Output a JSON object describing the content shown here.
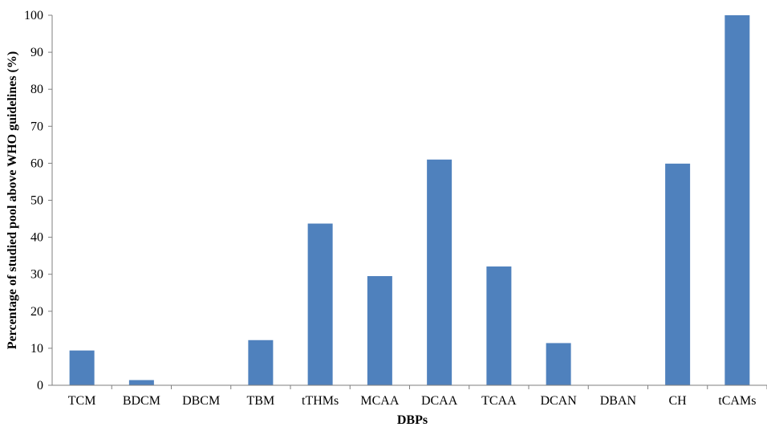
{
  "chart_data": {
    "type": "bar",
    "title": "",
    "xlabel": "DBPs",
    "ylabel": "Percentage of studied pool above WHO guidelines (%)",
    "ylim": [
      0,
      100
    ],
    "yticks": [
      0,
      10,
      20,
      30,
      40,
      50,
      60,
      70,
      80,
      90,
      100
    ],
    "grid": false,
    "legend": "none",
    "bar_color": "#4f81bd",
    "categories": [
      "TCM",
      "BDCM",
      "DBCM",
      "TBM",
      "tTHMs",
      "MCAA",
      "DCAA",
      "TCAA",
      "DCAN",
      "DBAN",
      "CH",
      "tCAMs"
    ],
    "values": [
      9.4,
      1.4,
      0,
      12.2,
      43.7,
      29.5,
      61,
      32.1,
      11.4,
      0,
      59.9,
      100
    ]
  }
}
